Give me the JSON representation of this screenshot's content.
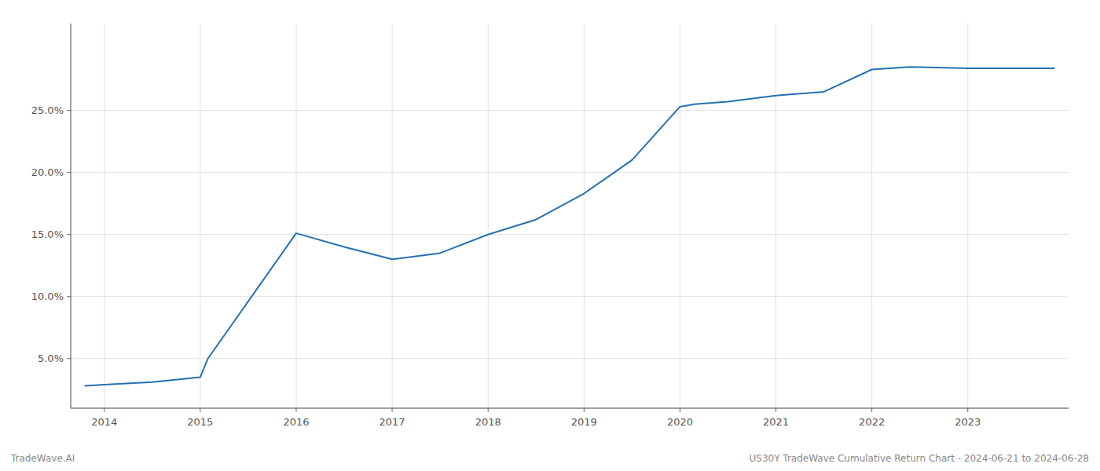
{
  "chart_data": {
    "type": "line",
    "x": [
      2013.8,
      2014.0,
      2014.5,
      2015.0,
      2015.08,
      2016.0,
      2016.5,
      2017.0,
      2017.5,
      2018.0,
      2018.5,
      2019.0,
      2019.5,
      2020.0,
      2020.15,
      2020.5,
      2021.0,
      2021.5,
      2022.0,
      2022.4,
      2023.0,
      2023.5,
      2023.9
    ],
    "values": [
      2.8,
      2.9,
      3.1,
      3.5,
      5.0,
      15.1,
      14.0,
      13.0,
      13.5,
      15.0,
      16.2,
      18.3,
      21.0,
      25.3,
      25.5,
      25.7,
      26.2,
      26.5,
      28.3,
      28.5,
      28.4,
      28.4,
      28.4
    ],
    "color": "#2471b0",
    "xlim": [
      2013.65,
      2024.05
    ],
    "xticks": [
      2014,
      2015,
      2016,
      2017,
      2018,
      2019,
      2020,
      2021,
      2022,
      2023
    ],
    "ylim": [
      1.0,
      32.0
    ],
    "yticks": [
      {
        "value": 5.0,
        "label": "5.0%"
      },
      {
        "value": 10.0,
        "label": "10.0%"
      },
      {
        "value": 15.0,
        "label": "15.0%"
      },
      {
        "value": 20.0,
        "label": "20.0%"
      },
      {
        "value": 25.0,
        "label": "25.0%"
      }
    ],
    "grid": true,
    "annotations": [
      "TradeWave.AI",
      "US30Y TradeWave Cumulative Return Chart - 2024-06-21 to 2024-06-28"
    ]
  }
}
